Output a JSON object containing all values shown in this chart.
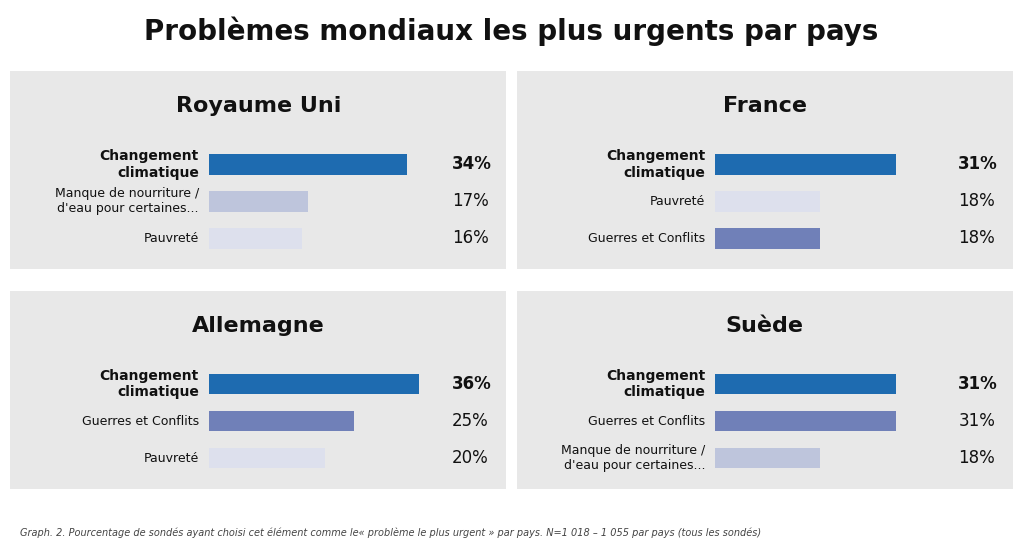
{
  "title": "Problèmes mondiaux les plus urgents par pays",
  "footnote": "Graph. 2. Pourcentage de sondés ayant choisi cet élément comme le« problème le plus urgent » par pays. N=1 018 – 1 055 par pays (tous les sondés)",
  "panels": [
    {
      "country": "Royaume Uni",
      "bars": [
        {
          "label": "Changement\nclimatique",
          "value": 34,
          "color": "#1e6bb0",
          "bold": true
        },
        {
          "label": "Manque de nourriture /\nd'eau pour certaines...",
          "value": 17,
          "color": "#bec5dc",
          "bold": false
        },
        {
          "label": "Pauvreté",
          "value": 16,
          "color": "#dde0ed",
          "bold": false
        }
      ]
    },
    {
      "country": "France",
      "bars": [
        {
          "label": "Changement\nclimatique",
          "value": 31,
          "color": "#1e6bb0",
          "bold": true
        },
        {
          "label": "Pauvreté",
          "value": 18,
          "color": "#dde0ed",
          "bold": false
        },
        {
          "label": "Guerres et Conflits",
          "value": 18,
          "color": "#7080b8",
          "bold": false
        }
      ]
    },
    {
      "country": "Allemagne",
      "bars": [
        {
          "label": "Changement\nclimatique",
          "value": 36,
          "color": "#1e6bb0",
          "bold": true
        },
        {
          "label": "Guerres et Conflits",
          "value": 25,
          "color": "#7080b8",
          "bold": false
        },
        {
          "label": "Pauvreté",
          "value": 20,
          "color": "#dde0ed",
          "bold": false
        }
      ]
    },
    {
      "country": "Suède",
      "bars": [
        {
          "label": "Changement\nclimatique",
          "value": 31,
          "color": "#1e6bb0",
          "bold": true
        },
        {
          "label": "Guerres et Conflits",
          "value": 31,
          "color": "#7080b8",
          "bold": false
        },
        {
          "label": "Manque de nourriture /\nd'eau pour certaines...",
          "value": 18,
          "color": "#bec5dc",
          "bold": false
        }
      ]
    }
  ],
  "bg_color": "#ffffff",
  "panel_bg_color": "#e8e8e8",
  "title_fontsize": 20,
  "country_fontsize": 16,
  "bar_label_fontsize": 9,
  "pct_fontsize": 12,
  "footnote_fontsize": 7,
  "max_value": 40
}
